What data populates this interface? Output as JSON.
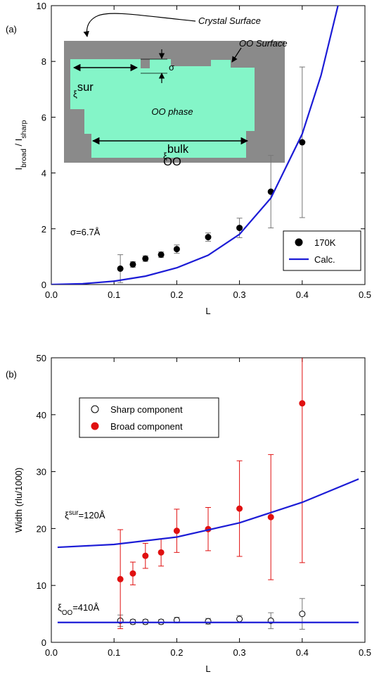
{
  "chart_data": [
    {
      "type": "scatter",
      "panel_label": "(a)",
      "xlabel": "L",
      "ylabel": [
        {
          "text": "I"
        },
        {
          "text": "broad",
          "shift": "sub"
        },
        {
          "text": " / I"
        },
        {
          "text": "sharp",
          "shift": "sub"
        }
      ],
      "xlim": [
        0,
        0.5
      ],
      "xticks": [
        {
          "value": 0,
          "label": "0.0"
        },
        0.1,
        0.2,
        0.3,
        0.4,
        0.5
      ],
      "ylim": [
        0,
        10
      ],
      "yticks": [
        0,
        2,
        4,
        6,
        8,
        10
      ],
      "legend": "lower right",
      "series": [
        {
          "name": "170K",
          "style": "marker",
          "color": "#000000",
          "filled": true,
          "x": [
            0.11,
            0.13,
            0.15,
            0.175,
            0.2,
            0.25,
            0.3,
            0.35,
            0.4
          ],
          "values": [
            0.57,
            0.72,
            0.93,
            1.07,
            1.27,
            1.7,
            2.03,
            3.33,
            5.1
          ],
          "errors": [
            0.5,
            0.1,
            0.1,
            0.1,
            0.15,
            0.15,
            0.35,
            1.3,
            2.7
          ]
        },
        {
          "name": "Calc.",
          "style": "line",
          "color": "#1c1cd6",
          "x": [
            0,
            0.05,
            0.1,
            0.15,
            0.2,
            0.25,
            0.3,
            0.35,
            0.4,
            0.43,
            0.457
          ],
          "values": [
            0,
            0.03,
            0.12,
            0.3,
            0.6,
            1.05,
            1.8,
            3.1,
            5.4,
            7.5,
            10
          ]
        }
      ],
      "annotations": [
        [
          {
            "text": "Crystal Surface"
          }
        ],
        [
          {
            "text": "OO Surface"
          }
        ],
        [
          {
            "text": "ξ"
          },
          {
            "text": "sur",
            "shift": "super"
          }
        ],
        [
          {
            "text": "σ"
          }
        ],
        [
          {
            "text": "OO phase"
          }
        ],
        [
          {
            "text": "ξ"
          },
          {
            "text": "bulk",
            "shift": "super"
          },
          {
            "text": "OO",
            "shift": "sub"
          }
        ],
        [
          {
            "text": "σ=6.7Å"
          }
        ]
      ]
    },
    {
      "type": "scatter",
      "panel_label": "(b)",
      "xlabel": "L",
      "ylabel": [
        {
          "text": "Width (rlu/1000)"
        }
      ],
      "xlim": [
        0,
        0.5
      ],
      "xticks": [
        {
          "value": 0,
          "label": "0.0"
        },
        0.1,
        0.2,
        0.3,
        0.4,
        0.5
      ],
      "ylim": [
        0,
        50
      ],
      "yticks": [
        0,
        10,
        20,
        30,
        40,
        50
      ],
      "legend": "upper left",
      "series": [
        {
          "name": "Sharp component",
          "style": "marker",
          "color": "#000000",
          "filled": false,
          "x": [
            0.11,
            0.13,
            0.15,
            0.175,
            0.2,
            0.25,
            0.3,
            0.35,
            0.4
          ],
          "values": [
            3.8,
            3.6,
            3.6,
            3.6,
            3.9,
            3.7,
            4.1,
            3.8,
            5.0
          ],
          "errors": [
            1.0,
            0.4,
            0.4,
            0.4,
            0.5,
            0.5,
            0.6,
            1.4,
            2.7
          ]
        },
        {
          "name": "Broad component",
          "style": "marker",
          "color": "#e01010",
          "filled": true,
          "x": [
            0.11,
            0.13,
            0.15,
            0.175,
            0.2,
            0.25,
            0.3,
            0.35,
            0.4
          ],
          "values": [
            11.1,
            12.1,
            15.2,
            15.8,
            19.6,
            19.9,
            23.5,
            22,
            42
          ],
          "errors": [
            8.7,
            2,
            2.2,
            2.4,
            3.8,
            3.8,
            8.4,
            11,
            28
          ]
        },
        {
          "style": "line",
          "color": "#1c1cd6",
          "x": [
            0.01,
            0.1,
            0.2,
            0.3,
            0.4,
            0.49
          ],
          "values": [
            16.7,
            17.2,
            18.5,
            21,
            24.6,
            28.7
          ]
        },
        {
          "style": "line",
          "color": "#1c1cd6",
          "x": [
            0.01,
            0.49
          ],
          "values": [
            3.5,
            3.5
          ]
        }
      ],
      "annotations": [
        [
          {
            "text": "ξ"
          },
          {
            "text": "sur",
            "shift": "super"
          },
          {
            "text": "=120Å"
          }
        ],
        [
          {
            "text": "ξ"
          },
          {
            "text": "OO",
            "shift": "sub"
          },
          {
            "text": "=410Å"
          }
        ]
      ]
    }
  ]
}
